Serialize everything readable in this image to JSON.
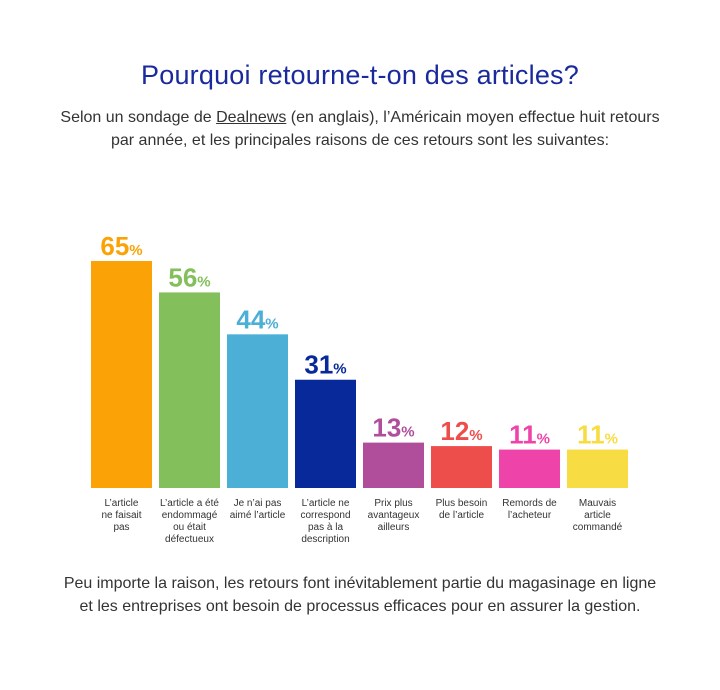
{
  "header": {
    "title": "Pourquoi retourne-t-on des articles?",
    "subtitle_pre": "Selon un sondage de ",
    "subtitle_link": "Dealnews",
    "subtitle_post": " (en anglais), l’Américain moyen effectue huit retours par année, et les principales raisons de ces retours sont les suivantes:"
  },
  "footer": {
    "text": "Peu importe la raison, les retours font inévitablement partie du magasinage en ligne et les entreprises ont besoin de processus efficaces pour en assurer la gestion."
  },
  "chart_data": {
    "type": "bar",
    "unit": "%",
    "ylim": [
      0,
      65
    ],
    "grid": false,
    "categories": [
      [
        "L’article",
        "ne faisait",
        "pas"
      ],
      [
        "L’article a été",
        "endommagé",
        "ou était",
        "défectueux"
      ],
      [
        "Je n’ai pas",
        "aimé l’article"
      ],
      [
        "L’article ne",
        "correspond",
        "pas à la",
        "description"
      ],
      [
        "Prix plus",
        "avantageux",
        "ailleurs"
      ],
      [
        "Plus besoin",
        "de l’article"
      ],
      [
        "Remords de",
        "l’acheteur"
      ],
      [
        "Mauvais",
        "article",
        "commandé"
      ]
    ],
    "values": [
      65,
      56,
      44,
      31,
      13,
      12,
      11,
      11
    ],
    "colors": [
      "#fba306",
      "#83bf5b",
      "#4cafd5",
      "#07299a",
      "#b14e9c",
      "#ed4e4c",
      "#ee44aa",
      "#f7dc43"
    ]
  }
}
